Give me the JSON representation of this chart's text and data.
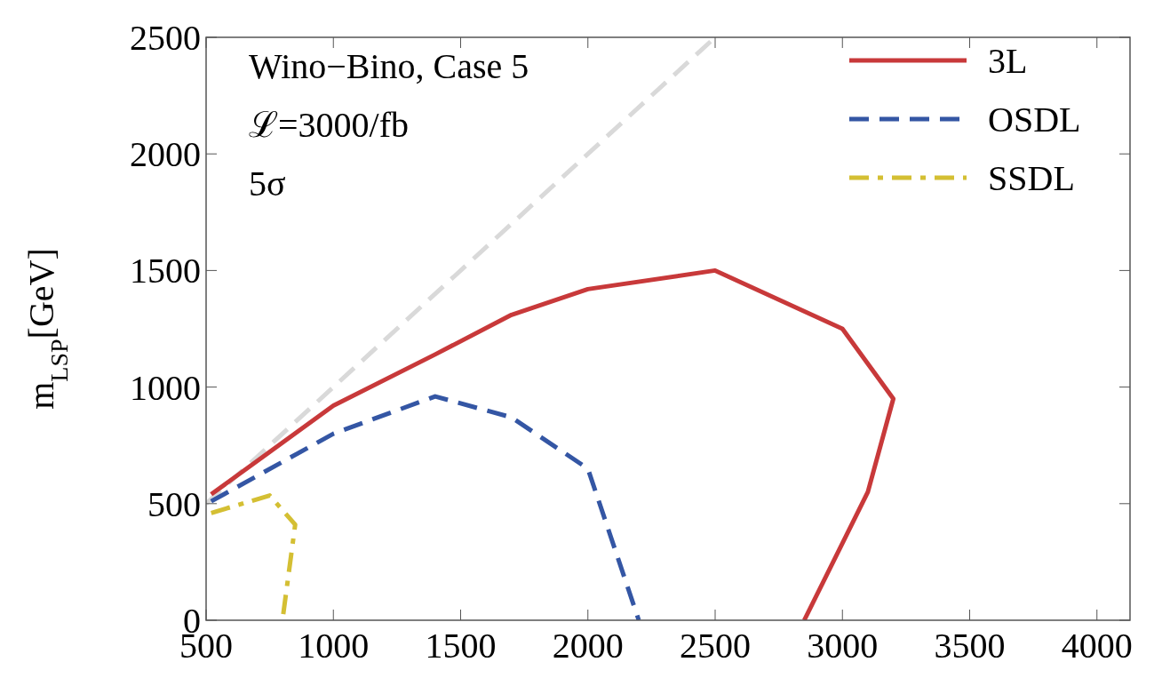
{
  "chart_data": {
    "type": "line",
    "annotations": [
      "Wino−Bino, Case 5",
      "ℒ=3000/fb",
      "5σ"
    ],
    "ylabel": "m$_{LSP}$[GeV]",
    "xlim": [
      500,
      4130
    ],
    "ylim": [
      0,
      2500
    ],
    "xticks": [
      500,
      1000,
      1500,
      2000,
      2500,
      3000,
      3500,
      4000
    ],
    "yticks": [
      0,
      500,
      1000,
      1500,
      2000,
      2500
    ],
    "legend": "top right",
    "grid": false,
    "series": [
      {
        "x": [
          500,
          2500
        ],
        "values": [
          500,
          2500
        ],
        "color": "#d9d9d9",
        "line_style": "dashed"
      },
      {
        "name": "3L",
        "color": "#c8393a",
        "line_style": "solid",
        "x": [
          520,
          1000,
          1400,
          1700,
          2000,
          2500,
          3000,
          3200,
          3100,
          2850
        ],
        "values": [
          540,
          920,
          1140,
          1310,
          1420,
          1500,
          1250,
          950,
          550,
          0
        ]
      },
      {
        "name": "OSDL",
        "color": "#3456a4",
        "line_style": "dashed",
        "x": [
          520,
          1000,
          1400,
          1700,
          2000,
          2200
        ],
        "values": [
          510,
          800,
          960,
          870,
          650,
          0
        ]
      },
      {
        "name": "SSDL",
        "color": "#d4bf33",
        "line_style": "dashdot",
        "x": [
          520,
          750,
          850,
          800
        ],
        "values": [
          460,
          535,
          410,
          0
        ]
      }
    ]
  }
}
